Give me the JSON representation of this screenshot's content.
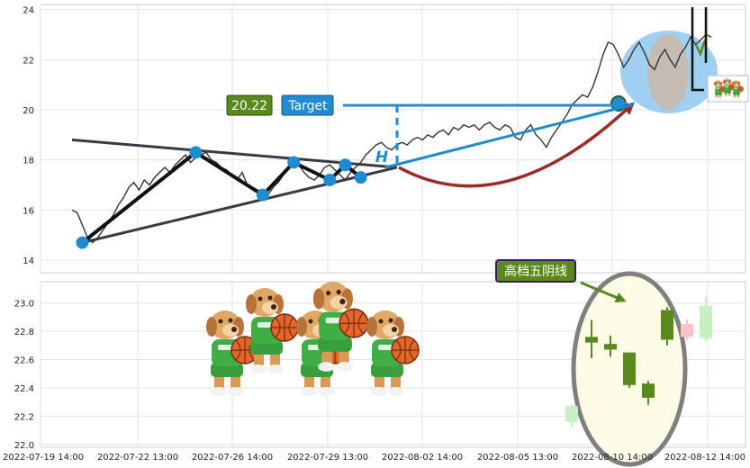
{
  "chart_data": [
    {
      "type": "line",
      "panel": "top",
      "ylim": [
        13.5,
        24.2
      ],
      "y_ticks": [
        "14",
        "16",
        "18",
        "20",
        "22",
        "24"
      ],
      "y_tick_values": [
        14,
        16,
        18,
        20,
        22,
        24
      ],
      "grid": true,
      "series": [
        {
          "values": [
            16.0,
            15.9,
            15.4,
            14.9,
            14.7,
            14.9,
            15.2,
            15.5,
            15.8,
            16.2,
            16.5,
            16.9,
            17.1,
            16.8,
            17.2,
            17.0,
            17.3,
            17.5,
            17.7,
            17.5,
            17.8,
            18.0,
            18.2,
            17.9,
            18.1,
            18.2,
            18.3,
            18.0,
            17.9,
            17.7,
            17.6,
            17.4,
            17.2,
            17.5,
            17.0,
            16.9,
            16.8,
            16.7,
            16.6,
            16.9,
            17.1,
            17.4,
            17.7,
            17.9,
            17.8,
            17.5,
            17.3,
            17.2,
            17.4,
            17.7,
            17.8,
            17.6,
            17.4,
            17.2,
            17.5,
            17.7,
            17.9,
            18.2,
            18.4,
            18.6,
            18.7,
            18.5,
            18.4,
            18.6,
            18.7,
            18.6,
            18.8,
            18.9,
            18.8,
            19.0,
            18.9,
            19.1,
            19.2,
            19.0,
            19.3,
            19.2,
            19.4,
            19.3,
            19.4,
            19.2,
            19.4,
            19.5,
            19.3,
            19.2,
            19.4,
            19.3,
            18.9,
            18.8,
            19.2,
            19.4,
            19.0,
            18.8,
            18.5,
            18.9,
            19.2,
            19.5,
            19.8,
            20.2,
            20.4,
            20.6,
            20.5,
            20.9,
            21.5,
            22.2,
            22.7,
            22.6,
            22.2,
            21.7,
            22.0,
            22.4,
            22.7,
            22.3,
            21.8,
            21.6,
            22.1,
            22.4,
            22.0,
            21.7,
            22.2,
            22.5,
            22.9,
            22.6,
            22.8,
            23.0,
            22.9
          ]
        }
      ],
      "annotations": {
        "pivots": [
          [
            2,
            14.7
          ],
          [
            24,
            18.3
          ],
          [
            37,
            16.6
          ],
          [
            43,
            17.9
          ],
          [
            50,
            17.2
          ],
          [
            53,
            17.8
          ],
          [
            56,
            17.3
          ],
          [
            106,
            20.25
          ]
        ],
        "upper_line": [
          [
            0,
            18.8
          ],
          [
            63,
            17.7
          ]
        ],
        "lower_line": [
          [
            2,
            14.7
          ],
          [
            63,
            17.7
          ]
        ],
        "target_price": "20.22",
        "target_label": "Target",
        "h_label": "H",
        "badge_icon": "basketball-dogs-icon"
      }
    },
    {
      "type": "candlestick",
      "panel": "bottom",
      "x_ticks": [
        "2022-07-19 14:00",
        "2022-07-22 13:00",
        "2022-07-26 14:00",
        "2022-07-29 13:00",
        "2022-08-02 14:00",
        "2022-08-05 13:00",
        "2022-08-10 14:00",
        "2022-08-12 14:00"
      ],
      "ylim": [
        21.98,
        23.15
      ],
      "y_ticks": [
        "22.0",
        "22.2",
        "22.4",
        "22.6",
        "22.8",
        "23.0"
      ],
      "y_tick_values": [
        22.0,
        22.2,
        22.4,
        22.6,
        22.8,
        23.0
      ],
      "grid": true,
      "candles": [
        {
          "open": 22.16,
          "close": 22.27,
          "high": 22.28,
          "low": 22.12,
          "color": "#c6f0c2"
        },
        {
          "open": 22.72,
          "close": 22.76,
          "high": 22.88,
          "low": 22.61,
          "color": "#5a8a1e"
        },
        {
          "open": 22.67,
          "close": 22.71,
          "high": 22.77,
          "low": 22.62,
          "color": "#5a8a1e"
        },
        {
          "open": 22.42,
          "close": 22.65,
          "high": 22.65,
          "low": 22.4,
          "color": "#5a8a1e"
        },
        {
          "open": 22.33,
          "close": 22.43,
          "high": 22.45,
          "low": 22.28,
          "color": "#5a8a1e"
        },
        {
          "open": 22.74,
          "close": 22.95,
          "high": 22.97,
          "low": 22.7,
          "color": "#5a8a1e"
        },
        {
          "open": 22.76,
          "close": 22.85,
          "high": 22.88,
          "low": 22.74,
          "color": "#ffc2c2"
        },
        {
          "open": 22.75,
          "close": 22.98,
          "high": 23.05,
          "low": 22.73,
          "color": "#c6f0c2"
        }
      ],
      "annotations": {
        "pattern_label": "高档五阴线",
        "mascot_icon": "basketball-dogs-group-icon"
      }
    }
  ],
  "colors": {
    "line": "#333333",
    "trend": "#3a3a46",
    "pivot": "#1f8bd1",
    "target_box": "#1f8bd1",
    "price_box": "#5a8a1e",
    "arrow_red": "#9b2b27",
    "arrow_blue": "#2a8bc8",
    "highlight": "#8ec8ee",
    "ellipse_fill": "#fbfbe6",
    "ellipse_stroke": "#7f7f7f"
  }
}
